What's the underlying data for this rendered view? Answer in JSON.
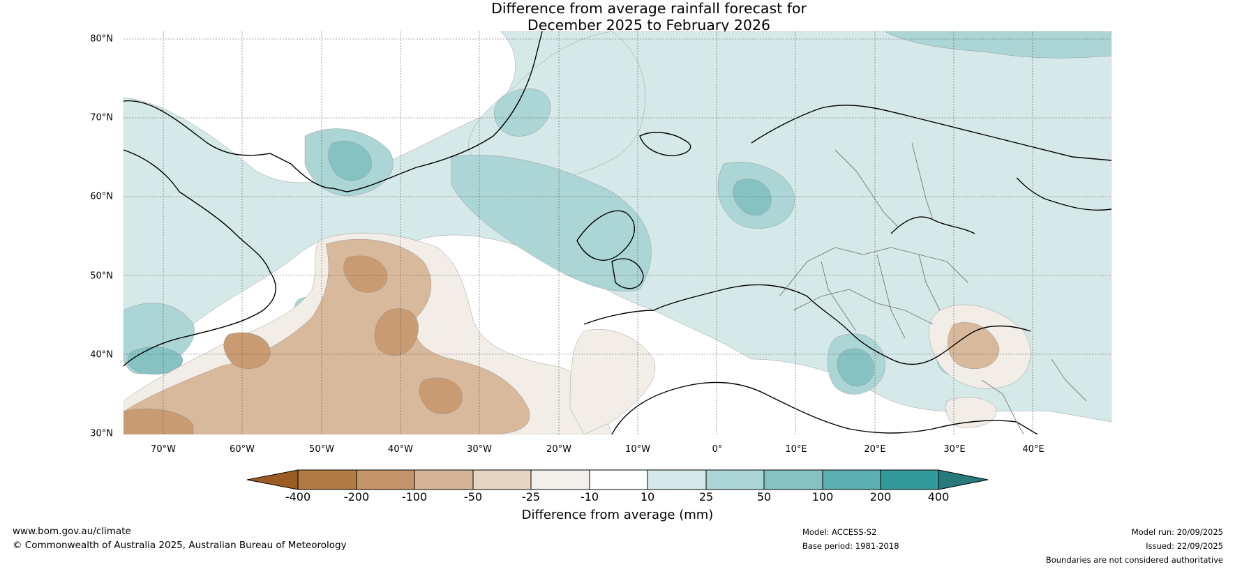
{
  "title": {
    "line1": "Difference from average rainfall forecast for",
    "line2": "December 2025 to February 2026"
  },
  "map": {
    "region": "North Atlantic and Europe",
    "latitude_labels": [
      "80°N",
      "70°N",
      "60°N",
      "50°N",
      "40°N",
      "30°N"
    ],
    "longitude_labels": [
      "70°W",
      "60°W",
      "50°W",
      "40°W",
      "30°W",
      "20°W",
      "10°W",
      "0°",
      "10°E",
      "20°E",
      "30°E",
      "40°E"
    ],
    "colors": {
      "dry_strong": "#c99b72",
      "dry_medium": "#d9b99b",
      "dry_light": "#f2ede7",
      "neutral": "#ffffff",
      "wet_light": "#d5e9e8",
      "wet_medium": "#acd5d5",
      "wet_strong": "#86c2c2",
      "coast": "#000000",
      "border": "#777777"
    }
  },
  "legend": {
    "title": "Difference from average (mm)",
    "ticks": [
      "-400",
      "-200",
      "-100",
      "-50",
      "-25",
      "-10",
      "10",
      "25",
      "50",
      "100",
      "200",
      "400"
    ],
    "colors": [
      "#9b5c24",
      "#b07a45",
      "#c4946a",
      "#d5b498",
      "#e7d5c4",
      "#f3efea",
      "#ffffff",
      "#d5e9e8",
      "#acd5d5",
      "#86c2c2",
      "#5caeb0",
      "#339a9c",
      "#27797a"
    ]
  },
  "footer": {
    "website": "www.bom.gov.au/climate",
    "copyright": "© Commonwealth of Australia 2025, Australian Bureau of Meteorology",
    "model": "Model: ACCESS-S2",
    "base_period": "Base period: 1981-2018",
    "model_run": "Model run: 20/09/2025",
    "issued": "Issued: 22/09/2025",
    "disclaimer": "Boundaries are not considered authoritative"
  }
}
